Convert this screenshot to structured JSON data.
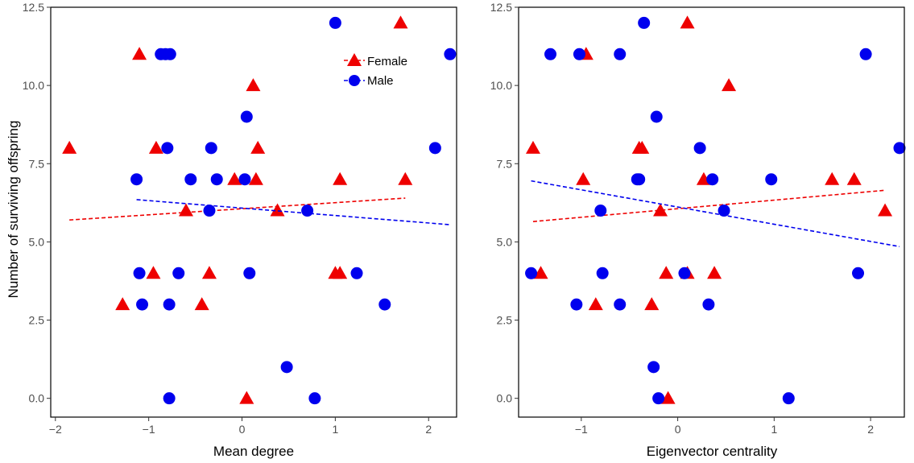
{
  "ylabel": "Number of surviving offspring",
  "colors": {
    "female": "#ee0000",
    "male": "#0000ee"
  },
  "chart_data": [
    {
      "type": "scatter",
      "xlabel": "Mean degree",
      "ylabel": "Number of surviving offspring",
      "xlim": [
        -2.05,
        2.3
      ],
      "ylim": [
        -0.6,
        12.5
      ],
      "x_ticks": [
        -2,
        -1,
        0,
        1,
        2
      ],
      "x_tick_labels": [
        "−2",
        "−1",
        "0",
        "1",
        "2"
      ],
      "y_ticks": [
        0,
        2.5,
        5,
        7.5,
        10,
        12.5
      ],
      "y_tick_labels": [
        "0.0",
        "2.5",
        "5.0",
        "7.5",
        "10.0",
        "12.5"
      ],
      "grid": false,
      "legend_position": "top-right",
      "series": [
        {
          "name": "Female",
          "marker": "triangle",
          "color": "#ee0000",
          "points": [
            [
              -1.85,
              8
            ],
            [
              -1.1,
              11
            ],
            [
              -0.92,
              8
            ],
            [
              -1.28,
              3
            ],
            [
              -0.95,
              4
            ],
            [
              -0.6,
              6
            ],
            [
              -0.43,
              3
            ],
            [
              -0.35,
              4
            ],
            [
              -0.08,
              7
            ],
            [
              0.05,
              0
            ],
            [
              0.12,
              10
            ],
            [
              0.15,
              7
            ],
            [
              0.17,
              8
            ],
            [
              0.38,
              6
            ],
            [
              1.0,
              4
            ],
            [
              1.05,
              4
            ],
            [
              1.05,
              7
            ],
            [
              1.7,
              12
            ],
            [
              1.75,
              7
            ]
          ],
          "trend": {
            "x": [
              -1.85,
              1.75
            ],
            "y": [
              5.7,
              6.4
            ]
          }
        },
        {
          "name": "Male",
          "marker": "circle",
          "color": "#0000ee",
          "points": [
            [
              -1.13,
              7
            ],
            [
              -1.1,
              4
            ],
            [
              -1.07,
              3
            ],
            [
              -0.87,
              11
            ],
            [
              -0.82,
              11
            ],
            [
              -0.77,
              11
            ],
            [
              -0.8,
              8
            ],
            [
              -0.78,
              3
            ],
            [
              -0.78,
              0
            ],
            [
              -0.68,
              4
            ],
            [
              -0.55,
              7
            ],
            [
              -0.35,
              6
            ],
            [
              -0.33,
              8
            ],
            [
              -0.27,
              7
            ],
            [
              0.03,
              7
            ],
            [
              0.05,
              9
            ],
            [
              0.08,
              4
            ],
            [
              0.48,
              1
            ],
            [
              0.7,
              6
            ],
            [
              0.78,
              0
            ],
            [
              1.0,
              12
            ],
            [
              1.23,
              4
            ],
            [
              1.53,
              3
            ],
            [
              2.07,
              8
            ],
            [
              2.23,
              11
            ]
          ],
          "trend": {
            "x": [
              -1.13,
              2.23
            ],
            "y": [
              6.35,
              5.55
            ]
          }
        }
      ]
    },
    {
      "type": "scatter",
      "xlabel": "Eigenvector centrality",
      "ylabel": "",
      "xlim": [
        -1.65,
        2.35
      ],
      "ylim": [
        -0.6,
        12.5
      ],
      "x_ticks": [
        -1,
        0,
        1,
        2
      ],
      "x_tick_labels": [
        "−1",
        "0",
        "1",
        "2"
      ],
      "y_ticks": [
        0,
        2.5,
        5,
        7.5,
        10,
        12.5
      ],
      "y_tick_labels": [
        "0.0",
        "2.5",
        "5.0",
        "7.5",
        "10.0",
        "12.5"
      ],
      "grid": false,
      "legend_position": "none",
      "series": [
        {
          "name": "Female",
          "marker": "triangle",
          "color": "#ee0000",
          "points": [
            [
              -1.5,
              8
            ],
            [
              -1.42,
              4
            ],
            [
              -0.98,
              7
            ],
            [
              -0.95,
              11
            ],
            [
              -0.85,
              3
            ],
            [
              -0.4,
              8
            ],
            [
              -0.37,
              8
            ],
            [
              -0.27,
              3
            ],
            [
              -0.18,
              6
            ],
            [
              -0.12,
              4
            ],
            [
              -0.1,
              0
            ],
            [
              0.1,
              4
            ],
            [
              0.1,
              12
            ],
            [
              0.27,
              7
            ],
            [
              0.38,
              4
            ],
            [
              0.53,
              10
            ],
            [
              1.6,
              7
            ],
            [
              1.83,
              7
            ],
            [
              2.15,
              6
            ]
          ],
          "trend": {
            "x": [
              -1.5,
              2.15
            ],
            "y": [
              5.65,
              6.65
            ]
          }
        },
        {
          "name": "Male",
          "marker": "circle",
          "color": "#0000ee",
          "points": [
            [
              -1.52,
              4
            ],
            [
              -1.32,
              11
            ],
            [
              -1.05,
              3
            ],
            [
              -1.02,
              11
            ],
            [
              -0.8,
              6
            ],
            [
              -0.78,
              4
            ],
            [
              -0.6,
              11
            ],
            [
              -0.6,
              3
            ],
            [
              -0.42,
              7
            ],
            [
              -0.4,
              7
            ],
            [
              -0.35,
              12
            ],
            [
              -0.25,
              1
            ],
            [
              -0.22,
              9
            ],
            [
              -0.2,
              0
            ],
            [
              0.07,
              4
            ],
            [
              0.23,
              8
            ],
            [
              0.32,
              3
            ],
            [
              0.36,
              7
            ],
            [
              0.48,
              6
            ],
            [
              0.97,
              7
            ],
            [
              1.15,
              0
            ],
            [
              1.87,
              4
            ],
            [
              1.95,
              11
            ],
            [
              2.3,
              8
            ]
          ],
          "trend": {
            "x": [
              -1.52,
              2.3
            ],
            "y": [
              6.95,
              4.85
            ]
          }
        }
      ]
    }
  ]
}
